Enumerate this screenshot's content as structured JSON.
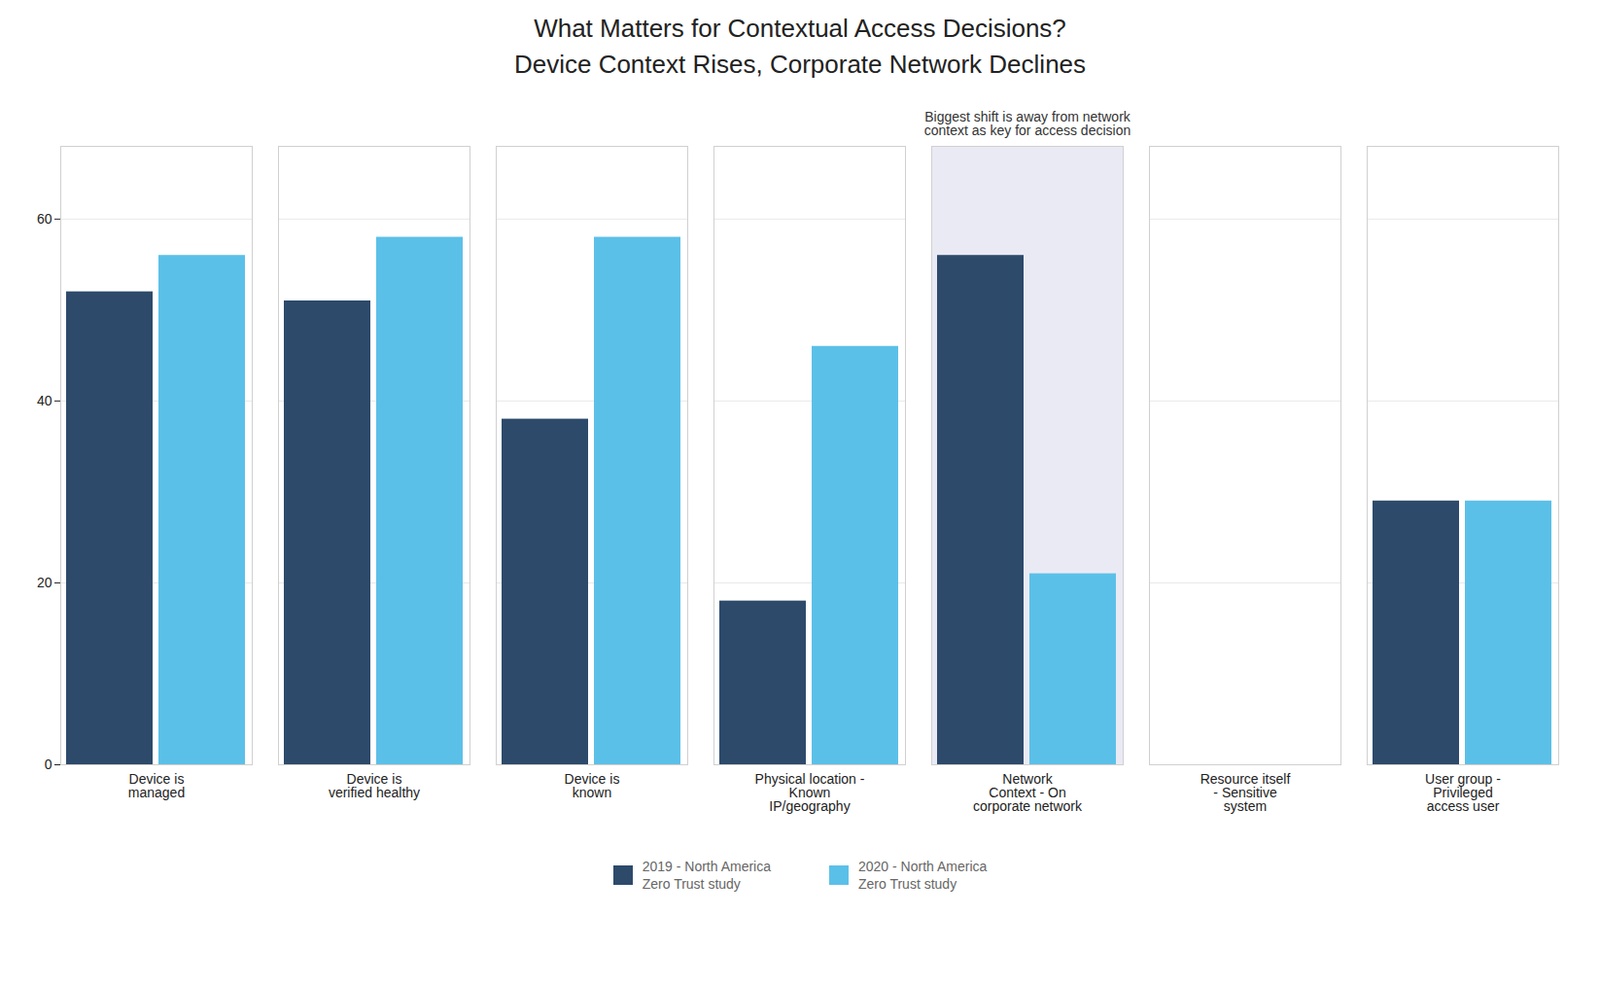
{
  "chart_data": {
    "type": "bar",
    "title": "What Matters for Contextual Access Decisions?",
    "subtitle": "Device Context Rises, Corporate Network Declines",
    "categories": [
      "Device is\nmanaged",
      "Device is\nverified healthy",
      "Device is\nknown",
      "Physical location -\nKnown\nIP/geography",
      "Network\nContext - On\ncorporate network",
      "Resource itself\n- Sensitive\nsystem",
      "User group -\nPrivileged\naccess user"
    ],
    "series": [
      {
        "name": "2019 - North America\nZero Trust study",
        "color": "#2d4a6b",
        "values": [
          52,
          51,
          38,
          18,
          56,
          0,
          29
        ]
      },
      {
        "name": "2020 - North America\nZero Trust study",
        "color": "#5bc0e8",
        "values": [
          56,
          58,
          58,
          46,
          21,
          0,
          29
        ]
      }
    ],
    "ylim": [
      0,
      68
    ],
    "yticks": [
      0,
      20,
      40,
      60
    ],
    "grid": true,
    "legend": "bottom",
    "annotations": [
      {
        "text": "Biggest shift is away from network\ncontext as key for access decision",
        "category": "Network\nContext - On\ncorporate network"
      }
    ]
  }
}
